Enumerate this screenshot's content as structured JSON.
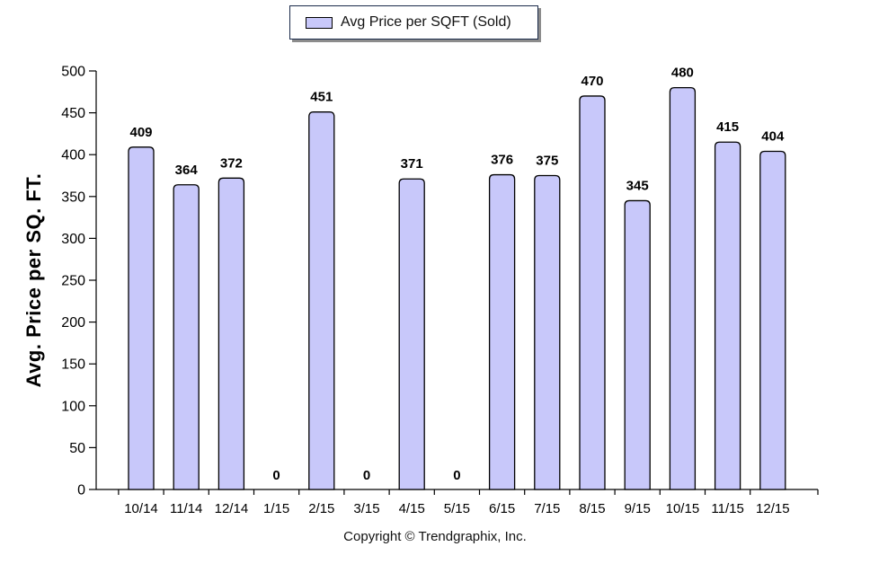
{
  "legend": {
    "label": "Avg Price per SQFT (Sold)"
  },
  "footer": {
    "copyright": "Copyright © Trendgraphix, Inc."
  },
  "colors": {
    "bar_fill": "#c8c8fa",
    "bar_stroke": "#000000",
    "axis": "#000000"
  },
  "chart_data": {
    "type": "bar",
    "categories": [
      "10/14",
      "11/14",
      "12/14",
      "1/15",
      "2/15",
      "3/15",
      "4/15",
      "5/15",
      "6/15",
      "7/15",
      "8/15",
      "9/15",
      "10/15",
      "11/15",
      "12/15"
    ],
    "series": [
      {
        "name": "Avg Price per SQFT (Sold)",
        "values": [
          409,
          364,
          372,
          0,
          451,
          0,
          371,
          0,
          376,
          375,
          470,
          345,
          480,
          415,
          404
        ]
      }
    ],
    "ylabel": "Avg. Price per SQ. FT.",
    "xlabel": "",
    "ylim": [
      0,
      500
    ],
    "yticks": [
      0,
      50,
      100,
      150,
      200,
      250,
      300,
      350,
      400,
      450,
      500
    ],
    "grid": false,
    "data_labels": true,
    "legend_position": "top-center"
  }
}
